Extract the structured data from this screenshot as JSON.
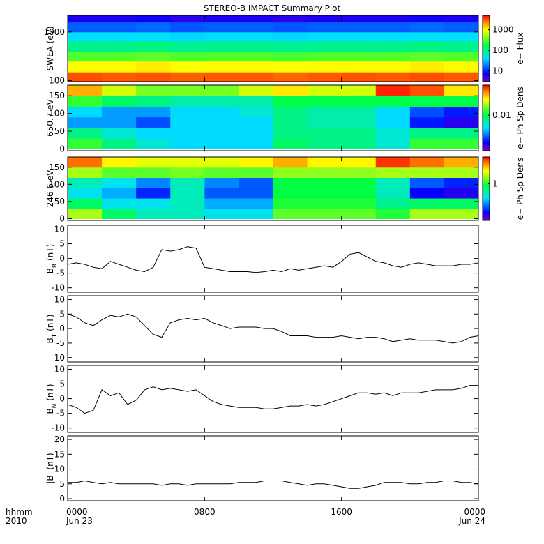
{
  "title": "STEREO-B IMPACT Summary Plot",
  "x_axis": {
    "xlim": [
      0,
      24
    ],
    "xticks": [
      {
        "value": 0,
        "label": "0000"
      },
      {
        "value": 8,
        "label": "0800"
      },
      {
        "value": 16,
        "label": "1600"
      },
      {
        "value": 24,
        "label": "0000"
      }
    ],
    "dates": [
      "Jun 23",
      "Jun 24"
    ],
    "label": [
      "hhmm",
      "2010"
    ]
  },
  "chart_data": [
    {
      "type": "heatmap",
      "ylabel": "SWEA (eV)",
      "ylog": true,
      "ylim": [
        95,
        2200
      ],
      "yticks": [
        100,
        1000
      ],
      "x_edges": [
        0,
        2,
        4,
        6,
        8,
        10,
        12,
        14,
        16,
        18,
        20,
        22,
        24
      ],
      "y_edges": [
        95,
        150,
        250,
        400,
        650,
        1000,
        1600,
        2200
      ],
      "values": [
        [
          3200,
          3000,
          3100,
          2900,
          3000,
          3000,
          2800,
          3000,
          3100,
          3000,
          3200,
          3000
        ],
        [
          1000,
          1000,
          1100,
          950,
          1000,
          1000,
          950,
          1000,
          1000,
          1000,
          1100,
          1000
        ],
        [
          300,
          300,
          320,
          290,
          300,
          300,
          280,
          300,
          300,
          300,
          320,
          300
        ],
        [
          100,
          100,
          110,
          95,
          100,
          100,
          95,
          100,
          100,
          100,
          110,
          100
        ],
        [
          40,
          40,
          42,
          38,
          40,
          40,
          38,
          40,
          40,
          40,
          42,
          40
        ],
        [
          15,
          15,
          16,
          14,
          15,
          15,
          14,
          15,
          15,
          15,
          16,
          15
        ],
        [
          6,
          6,
          6.5,
          5.5,
          6,
          6,
          5.5,
          6,
          6,
          6,
          6.5,
          6
        ]
      ],
      "zlabel": "e− Flux",
      "zlog": true,
      "zlim": [
        3,
        5000
      ],
      "zticks": [
        10,
        100,
        1000
      ]
    },
    {
      "type": "heatmap",
      "ylabel": "650.7 eV",
      "ylim": [
        -5,
        180
      ],
      "yticks": [
        0,
        50,
        100,
        150
      ],
      "x_edges": [
        0,
        2,
        4,
        6,
        8,
        10,
        12,
        14,
        16,
        18,
        20,
        22,
        24
      ],
      "y_edges": [
        0,
        30,
        60,
        90,
        120,
        150,
        180
      ],
      "values": [
        [
          0.012,
          0.008,
          0.006,
          0.005,
          0.005,
          0.005,
          0.009,
          0.008,
          0.008,
          0.006,
          0.012,
          0.012
        ],
        [
          0.008,
          0.006,
          0.005,
          0.005,
          0.005,
          0.005,
          0.008,
          0.008,
          0.008,
          0.006,
          0.008,
          0.008
        ],
        [
          0.004,
          0.004,
          0.003,
          0.005,
          0.005,
          0.005,
          0.008,
          0.007,
          0.007,
          0.005,
          0.0025,
          0.002
        ],
        [
          0.005,
          0.004,
          0.004,
          0.005,
          0.005,
          0.006,
          0.008,
          0.007,
          0.007,
          0.005,
          0.003,
          0.0025
        ],
        [
          0.012,
          0.009,
          0.008,
          0.007,
          0.007,
          0.007,
          0.01,
          0.01,
          0.01,
          0.01,
          0.01,
          0.01
        ],
        [
          0.03,
          0.02,
          0.015,
          0.015,
          0.015,
          0.02,
          0.025,
          0.02,
          0.02,
          0.045,
          0.04,
          0.025
        ]
      ],
      "zlabel": "e− Ph Sp Dens",
      "zlog": true,
      "zlim": [
        0.0015,
        0.05
      ],
      "zticks": [
        0.01
      ]
    },
    {
      "type": "heatmap",
      "ylabel": "246.6 eV",
      "ylim": [
        -5,
        180
      ],
      "yticks": [
        0,
        50,
        100,
        150
      ],
      "x_edges": [
        0,
        2,
        4,
        6,
        8,
        10,
        12,
        14,
        16,
        18,
        20,
        22,
        24
      ],
      "y_edges": [
        0,
        30,
        60,
        90,
        120,
        150,
        180
      ],
      "values": [
        [
          1.5,
          0.8,
          0.6,
          0.6,
          0.5,
          0.5,
          1.2,
          1.2,
          1.2,
          1,
          1.5,
          1.5
        ],
        [
          0.8,
          0.5,
          0.5,
          0.6,
          0.4,
          0.4,
          1,
          1,
          1,
          0.7,
          0.8,
          0.8
        ],
        [
          0.5,
          0.4,
          0.25,
          0.6,
          0.3,
          0.3,
          0.9,
          0.9,
          0.9,
          0.6,
          0.22,
          0.2
        ],
        [
          0.6,
          0.5,
          0.35,
          0.6,
          0.35,
          0.3,
          0.9,
          0.9,
          0.9,
          0.6,
          0.3,
          0.25
        ],
        [
          1.5,
          1.2,
          1.2,
          1.3,
          1.2,
          1.2,
          1.4,
          1.4,
          1.4,
          1.5,
          1.5,
          1.5
        ],
        [
          3,
          2,
          1.8,
          1.8,
          1.8,
          2,
          2.5,
          2,
          2,
          3.5,
          3,
          2.5
        ]
      ],
      "zlabel": "e− Ph Sp Dens",
      "zlog": true,
      "zlim": [
        0.15,
        4
      ],
      "zticks": [
        1
      ]
    },
    {
      "type": "line",
      "ylabel": [
        "B",
        "R",
        " (nT)"
      ],
      "ylim": [
        -11.5,
        11.3
      ],
      "yticks": [
        -10,
        -5,
        0,
        5,
        10
      ],
      "color": "#000000",
      "x": [
        0,
        0.5,
        1,
        1.5,
        2,
        2.5,
        3,
        3.5,
        4,
        4.5,
        5,
        5.5,
        6,
        6.5,
        7,
        7.5,
        8,
        8.5,
        9,
        9.5,
        10,
        10.5,
        11,
        11.5,
        12,
        12.5,
        13,
        13.5,
        14,
        14.5,
        15,
        15.5,
        16,
        16.5,
        17,
        17.5,
        18,
        18.5,
        19,
        19.5,
        20,
        20.5,
        21,
        21.5,
        22,
        22.5,
        23,
        23.5,
        24
      ],
      "values": [
        -2,
        -1.5,
        -2,
        -3,
        -3.5,
        -1,
        -2,
        -3,
        -4,
        -4.5,
        -3,
        3,
        2.5,
        3,
        4,
        3.5,
        -3,
        -3.5,
        -4,
        -4.5,
        -4.5,
        -4.5,
        -4.8,
        -4.5,
        -4,
        -4.5,
        -3.5,
        -4,
        -3.5,
        -3,
        -2.5,
        -3,
        -1,
        1.5,
        2,
        0.5,
        -1,
        -1.5,
        -2.5,
        -3,
        -2,
        -1.5,
        -2,
        -2.5,
        -2.5,
        -2.5,
        -2,
        -2,
        -1.5
      ]
    },
    {
      "type": "line",
      "ylabel": [
        "B",
        "T",
        " (nT)"
      ],
      "ylim": [
        -11.5,
        11.3
      ],
      "yticks": [
        -10,
        -5,
        0,
        5,
        10
      ],
      "color": "#000000",
      "x": [
        0,
        0.5,
        1,
        1.5,
        2,
        2.5,
        3,
        3.5,
        4,
        4.5,
        5,
        5.5,
        6,
        6.5,
        7,
        7.5,
        8,
        8.5,
        9,
        9.5,
        10,
        10.5,
        11,
        11.5,
        12,
        12.5,
        13,
        13.5,
        14,
        14.5,
        15,
        15.5,
        16,
        16.5,
        17,
        17.5,
        18,
        18.5,
        19,
        19.5,
        20,
        20.5,
        21,
        21.5,
        22,
        22.5,
        23,
        23.5,
        24
      ],
      "values": [
        5,
        4,
        2,
        1,
        3,
        4.5,
        4,
        5,
        4,
        1,
        -2,
        -3,
        2,
        3,
        3.5,
        3,
        3.5,
        2,
        1,
        0,
        0.5,
        0.5,
        0.5,
        0,
        0,
        -1,
        -2.5,
        -2.5,
        -2.5,
        -3,
        -3,
        -3,
        -2.5,
        -3,
        -3.5,
        -3,
        -3,
        -3.5,
        -4.5,
        -4,
        -3.5,
        -4,
        -4,
        -4,
        -4.5,
        -5,
        -4.5,
        -3,
        -2.5
      ]
    },
    {
      "type": "line",
      "ylabel": [
        "B",
        "N",
        " (nT)"
      ],
      "ylim": [
        -11.5,
        11.3
      ],
      "yticks": [
        -10,
        -5,
        0,
        5,
        10
      ],
      "color": "#000000",
      "x": [
        0,
        0.5,
        1,
        1.5,
        2,
        2.5,
        3,
        3.5,
        4,
        4.5,
        5,
        5.5,
        6,
        6.5,
        7,
        7.5,
        8,
        8.5,
        9,
        9.5,
        10,
        10.5,
        11,
        11.5,
        12,
        12.5,
        13,
        13.5,
        14,
        14.5,
        15,
        15.5,
        16,
        16.5,
        17,
        17.5,
        18,
        18.5,
        19,
        19.5,
        20,
        20.5,
        21,
        21.5,
        22,
        22.5,
        23,
        23.5,
        24
      ],
      "values": [
        -2,
        -3,
        -5,
        -4,
        3,
        1,
        2,
        -2,
        -0.5,
        3,
        4,
        3,
        3.5,
        3,
        2.5,
        3,
        1,
        -1,
        -2,
        -2.5,
        -3,
        -3,
        -3,
        -3.5,
        -3.5,
        -3,
        -2.5,
        -2.5,
        -2,
        -2.5,
        -2,
        -1,
        0,
        1,
        2,
        2,
        1.5,
        2,
        1,
        2,
        2,
        2,
        2.5,
        3,
        3,
        3,
        3.5,
        4.5,
        4.5
      ]
    },
    {
      "type": "line",
      "ylabel": "|B| (nT)",
      "ylim": [
        -0.7,
        21.2
      ],
      "yticks": [
        0,
        5,
        10,
        15,
        20
      ],
      "color": "#000000",
      "x": [
        0,
        0.5,
        1,
        1.5,
        2,
        2.5,
        3,
        3.5,
        4,
        4.5,
        5,
        5.5,
        6,
        6.5,
        7,
        7.5,
        8,
        8.5,
        9,
        9.5,
        10,
        10.5,
        11,
        11.5,
        12,
        12.5,
        13,
        13.5,
        14,
        14.5,
        15,
        15.5,
        16,
        16.5,
        17,
        17.5,
        18,
        18.5,
        19,
        19.5,
        20,
        20.5,
        21,
        21.5,
        22,
        22.5,
        23,
        23.5,
        24
      ],
      "values": [
        5.5,
        5.5,
        6,
        5.5,
        5,
        5.5,
        5,
        5,
        5,
        5,
        5,
        4.5,
        5,
        5,
        4.5,
        5,
        5,
        5,
        5,
        5,
        5.5,
        5.5,
        5.5,
        6,
        6,
        6,
        5.5,
        5,
        4.5,
        5,
        5,
        4.5,
        4,
        3.5,
        3.5,
        4,
        4.5,
        5.5,
        5.5,
        5.5,
        5,
        5,
        5.5,
        5.5,
        6,
        6,
        5.5,
        5.5,
        5
      ]
    }
  ]
}
